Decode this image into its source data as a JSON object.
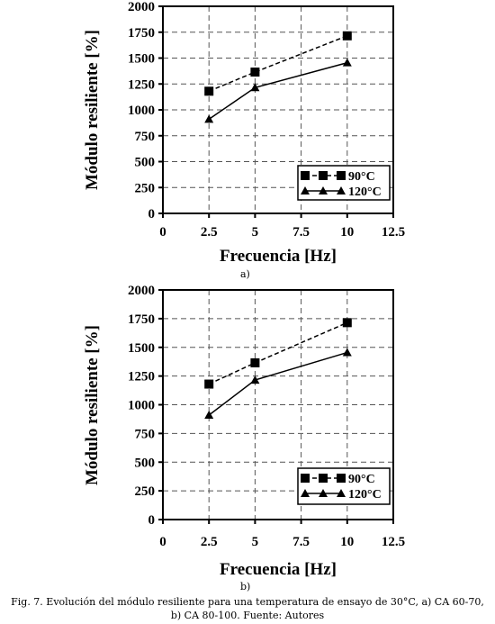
{
  "figure": {
    "caption": "Fig. 7. Evolución del módulo resiliente para una temperatura de ensayo de 30°C, a) CA 60-70, b) CA 80-100. Fuente: Autores"
  },
  "chart_data": [
    {
      "type": "line",
      "panel_label": "a)",
      "xlabel": "Frecuencia [Hz]",
      "ylabel": "Módulo resiliente [%]",
      "xlim": [
        0,
        12.5
      ],
      "ylim": [
        0,
        2000
      ],
      "xticks": [
        "0",
        "2.5",
        "5",
        "7.5",
        "10",
        "12.5"
      ],
      "yticks": [
        "0",
        "250",
        "500",
        "750",
        "1000",
        "1250",
        "1500",
        "1750",
        "2000"
      ],
      "grid": true,
      "legend_position": "bottom-right",
      "series": [
        {
          "name": "90°C",
          "marker": "square",
          "dash": "dashed",
          "x": [
            2.5,
            5,
            10
          ],
          "y": [
            1180,
            1365,
            1715
          ]
        },
        {
          "name": "120°C",
          "marker": "triangle",
          "dash": "solid",
          "x": [
            2.5,
            5,
            10
          ],
          "y": [
            910,
            1215,
            1455
          ]
        }
      ]
    },
    {
      "type": "line",
      "panel_label": "b)",
      "xlabel": "Frecuencia [Hz]",
      "ylabel": "Módulo resiliente [%]",
      "xlim": [
        0,
        12.5
      ],
      "ylim": [
        0,
        2000
      ],
      "xticks": [
        "0",
        "2.5",
        "5",
        "7.5",
        "10",
        "12.5"
      ],
      "yticks": [
        "0",
        "250",
        "500",
        "750",
        "1000",
        "1250",
        "1500",
        "1750",
        "2000"
      ],
      "grid": true,
      "legend_position": "bottom-right",
      "series": [
        {
          "name": "90°C",
          "marker": "square",
          "dash": "dashed",
          "x": [
            2.5,
            5,
            10
          ],
          "y": [
            1180,
            1365,
            1715
          ]
        },
        {
          "name": "120°C",
          "marker": "triangle",
          "dash": "solid",
          "x": [
            2.5,
            5,
            10
          ],
          "y": [
            910,
            1215,
            1455
          ]
        }
      ]
    }
  ]
}
